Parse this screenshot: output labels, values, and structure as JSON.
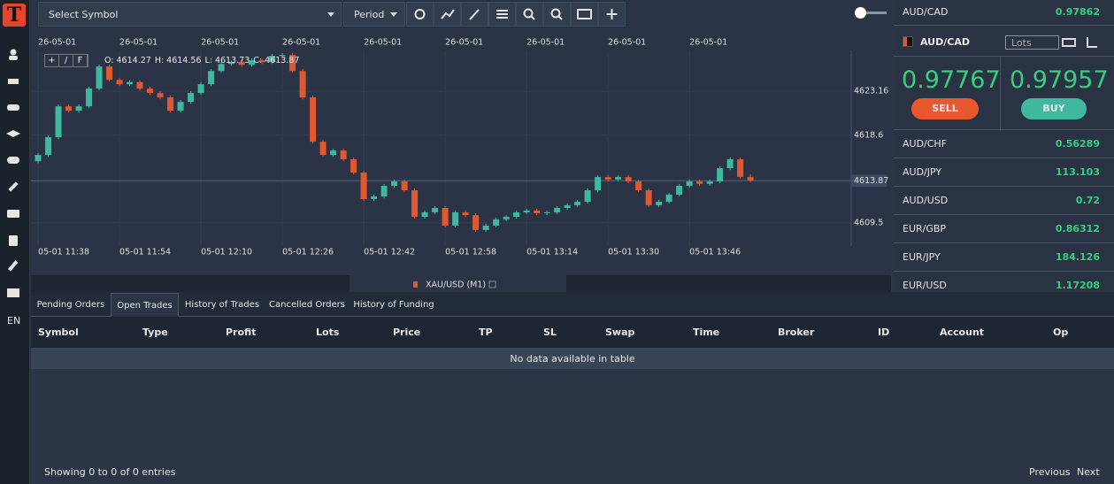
{
  "toolbar": {
    "symbol": "Select Symbol",
    "period": "Period"
  },
  "sidebar": {
    "language": "EN"
  },
  "chart_data": {
    "type": "candlestick",
    "symbol": "XAU/USD (M1)",
    "controls": [
      "+",
      "/",
      "F"
    ],
    "ohlc_labels": [
      "O:",
      "H:",
      "L:",
      "C:"
    ],
    "up_color": "#3fb8a0",
    "down_color": "#e0582e",
    "grid": true,
    "candles": [
      [
        4615.9,
        4616.75,
        4615.7,
        4616.55
      ],
      [
        4616.55,
        4618.59,
        4616.35,
        4618.39
      ],
      [
        4618.39,
        4621.8,
        4618.19,
        4621.6
      ],
      [
        4621.6,
        4621.8,
        4620.94,
        4621.14
      ],
      [
        4621.14,
        4621.8,
        4620.94,
        4621.6
      ],
      [
        4621.6,
        4623.64,
        4621.4,
        4623.44
      ],
      [
        4623.44,
        4625.93,
        4623.24,
        4625.73
      ],
      [
        4625.73,
        4625.93,
        4624.15,
        4624.35
      ],
      [
        4624.35,
        4624.55,
        4623.69,
        4623.89
      ],
      [
        4623.89,
        4624.32,
        4623.69,
        4624.12
      ],
      [
        4624.12,
        4624.32,
        4623.24,
        4623.44
      ],
      [
        4623.44,
        4623.64,
        4622.78,
        4622.98
      ],
      [
        4622.98,
        4623.18,
        4622.32,
        4622.52
      ],
      [
        4622.52,
        4622.72,
        4620.94,
        4621.14
      ],
      [
        4621.14,
        4622.26,
        4620.94,
        4622.06
      ],
      [
        4622.06,
        4623.18,
        4621.86,
        4622.98
      ],
      [
        4622.98,
        4624.09,
        4622.78,
        4623.89
      ],
      [
        4623.89,
        4625.47,
        4623.69,
        4625.27
      ],
      [
        4625.27,
        4626.2,
        4625.07,
        4626.0
      ],
      [
        4626.0,
        4626.39,
        4625.8,
        4626.19
      ],
      [
        4626.19,
        4626.39,
        4625.7,
        4625.9
      ],
      [
        4625.9,
        4626.57,
        4625.7,
        4626.37
      ],
      [
        4626.37,
        4626.57,
        4625.99,
        4626.19
      ],
      [
        4626.19,
        4627.03,
        4625.99,
        4626.83
      ],
      [
        4626.83,
        4627.12,
        4626.63,
        4626.92
      ],
      [
        4626.92,
        4627.12,
        4625.07,
        4625.27
      ],
      [
        4625.27,
        4625.47,
        4622.32,
        4622.52
      ],
      [
        4622.52,
        4622.72,
        4617.73,
        4617.93
      ],
      [
        4617.93,
        4618.13,
        4616.35,
        4616.55
      ],
      [
        4616.55,
        4617.21,
        4616.35,
        4617.01
      ],
      [
        4617.01,
        4617.21,
        4615.9,
        4616.1
      ],
      [
        4616.1,
        4616.3,
        4614.52,
        4614.72
      ],
      [
        4614.72,
        4614.92,
        4611.77,
        4611.97
      ],
      [
        4611.97,
        4612.44,
        4611.77,
        4612.24
      ],
      [
        4612.24,
        4613.54,
        4612.04,
        4613.34
      ],
      [
        4613.34,
        4614.0,
        4613.14,
        4613.8
      ],
      [
        4613.8,
        4614.0,
        4612.68,
        4612.88
      ],
      [
        4612.88,
        4613.08,
        4609.93,
        4610.13
      ],
      [
        4610.13,
        4610.79,
        4609.93,
        4610.59
      ],
      [
        4610.59,
        4611.25,
        4610.39,
        4611.05
      ],
      [
        4611.05,
        4611.25,
        4609.02,
        4609.22
      ],
      [
        4609.22,
        4610.79,
        4609.02,
        4610.59
      ],
      [
        4610.59,
        4610.79,
        4610.1,
        4610.3
      ],
      [
        4610.3,
        4610.5,
        4608.56,
        4608.76
      ],
      [
        4608.76,
        4609.42,
        4608.56,
        4609.22
      ],
      [
        4609.22,
        4610.06,
        4609.02,
        4609.86
      ],
      [
        4609.86,
        4610.33,
        4609.66,
        4610.13
      ],
      [
        4610.13,
        4610.79,
        4609.93,
        4610.59
      ],
      [
        4610.59,
        4610.97,
        4610.39,
        4610.77
      ],
      [
        4610.77,
        4610.97,
        4610.3,
        4610.5
      ],
      [
        4610.5,
        4610.79,
        4610.3,
        4610.59
      ],
      [
        4610.59,
        4611.25,
        4610.39,
        4611.05
      ],
      [
        4611.05,
        4611.53,
        4610.85,
        4611.33
      ],
      [
        4611.33,
        4611.89,
        4611.13,
        4611.69
      ],
      [
        4611.69,
        4613.08,
        4611.49,
        4612.88
      ],
      [
        4612.88,
        4614.46,
        4612.68,
        4614.26
      ],
      [
        4614.26,
        4614.46,
        4613.8,
        4614.0
      ],
      [
        4614.0,
        4614.46,
        4613.8,
        4614.26
      ],
      [
        4614.26,
        4614.46,
        4613.6,
        4613.8
      ],
      [
        4613.8,
        4614.0,
        4612.68,
        4612.88
      ],
      [
        4612.88,
        4613.08,
        4611.13,
        4611.33
      ],
      [
        4611.33,
        4611.89,
        4611.13,
        4611.69
      ],
      [
        4611.69,
        4612.63,
        4611.49,
        4612.43
      ],
      [
        4612.43,
        4613.54,
        4612.23,
        4613.34
      ],
      [
        4613.34,
        4614.0,
        4613.14,
        4613.8
      ],
      [
        4613.8,
        4614.0,
        4613.35,
        4613.55
      ],
      [
        4613.55,
        4614.0,
        4613.35,
        4613.8
      ],
      [
        4613.8,
        4615.38,
        4613.6,
        4615.18
      ],
      [
        4615.18,
        4616.3,
        4614.98,
        4616.1
      ],
      [
        4616.1,
        4616.3,
        4614.07,
        4614.27
      ],
      [
        4614.27,
        4614.56,
        4613.73,
        4613.87
      ]
    ],
    "xlim": [
      -0.7,
      79.9
    ],
    "xticks": [
      {
        "value": 0,
        "label": "05-01 11:38"
      },
      {
        "value": 8,
        "label": "05-01 11:54"
      },
      {
        "value": 16,
        "label": "05-01 12:10"
      },
      {
        "value": 24,
        "label": "05-01 12:26"
      },
      {
        "value": 32,
        "label": "05-01 12:42"
      },
      {
        "value": 40,
        "label": "05-01 12:58"
      },
      {
        "value": 48,
        "label": "05-01 13:14"
      },
      {
        "value": 56,
        "label": "05-01 13:30"
      },
      {
        "value": 64,
        "label": "05-01 13:46"
      }
    ],
    "xticks_top": [
      {
        "value": 0,
        "label": "26-05-01"
      },
      {
        "value": 8,
        "label": "26-05-01"
      },
      {
        "value": 16,
        "label": "26-05-01"
      },
      {
        "value": 24,
        "label": "26-05-01"
      },
      {
        "value": 32,
        "label": "26-05-01"
      },
      {
        "value": 40,
        "label": "26-05-01"
      },
      {
        "value": 48,
        "label": "26-05-01"
      },
      {
        "value": 56,
        "label": "26-05-01"
      },
      {
        "value": 64,
        "label": "26-05-01"
      }
    ],
    "ylim": [
      4607.1,
      4627.4
    ],
    "yticks": [
      4623.16,
      4618.6,
      4609.5
    ],
    "last_price": 4613.87
  },
  "quotes_top": [
    {
      "symbol": "AUD/CAD",
      "price": "0.97862"
    }
  ],
  "trade": {
    "symbol": "AUD/CAD",
    "lots_placeholder": "Lots",
    "sell_price": "0.97767",
    "buy_price": "0.97957",
    "sell": "SELL",
    "buy": "BUY"
  },
  "quotes": [
    {
      "symbol": "AUD/CHF",
      "price": "0.56289"
    },
    {
      "symbol": "AUD/JPY",
      "price": "113.103"
    },
    {
      "symbol": "AUD/USD",
      "price": "0.72"
    },
    {
      "symbol": "EUR/GBP",
      "price": "0.86312"
    },
    {
      "symbol": "EUR/JPY",
      "price": "184.126"
    },
    {
      "symbol": "EUR/USD",
      "price": "1.17208"
    }
  ],
  "tabs": [
    "Pending Orders",
    "Open Trades",
    "History of Trades",
    "Cancelled Orders",
    "History of Funding"
  ],
  "table": {
    "columns": [
      "Symbol",
      "Type",
      "Profit",
      "Lots",
      "Price",
      "TP",
      "SL",
      "Swap",
      "Time",
      "Broker",
      "ID",
      "Account",
      "Op"
    ],
    "empty": "No data available in table",
    "info": "Showing 0 to 0 of 0 entries",
    "previous": "Previous",
    "next": "Next"
  }
}
